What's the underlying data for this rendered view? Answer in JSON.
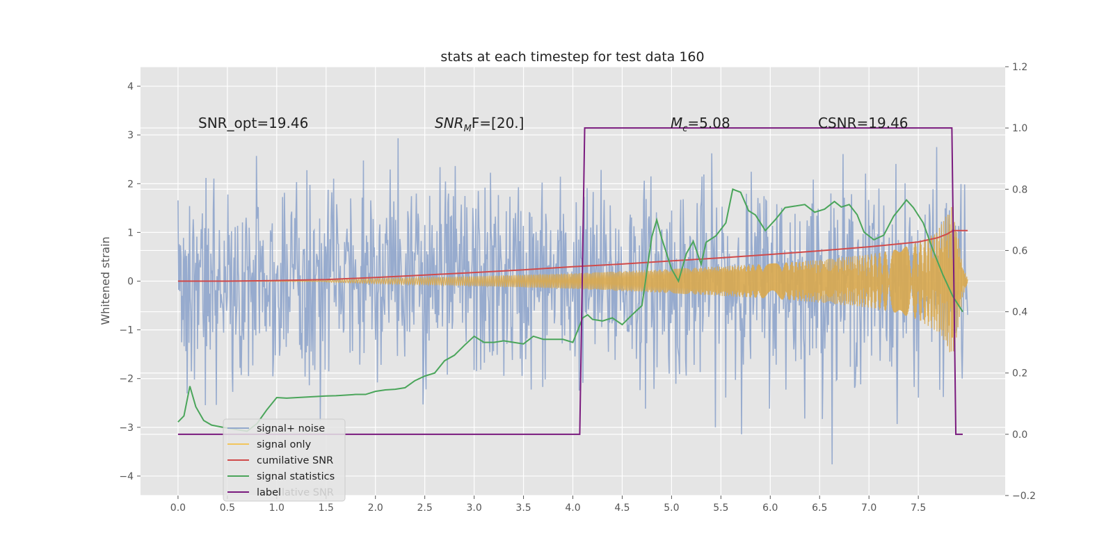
{
  "chart_data": {
    "type": "line",
    "title": "stats at each timestep for test data 160",
    "ylabel": "Whitened strain",
    "xlabel": "",
    "xlim": [
      -0.38,
      8.38
    ],
    "ylim": [
      -4.4,
      4.4
    ],
    "ylim_right": [
      -0.2,
      1.2
    ],
    "grid": true,
    "x_ticks": [
      0.0,
      0.5,
      1.0,
      1.5,
      2.0,
      2.5,
      3.0,
      3.5,
      4.0,
      4.5,
      5.0,
      5.5,
      6.0,
      6.5,
      7.0,
      7.5
    ],
    "x_tick_labels": [
      "0.0",
      "0.5",
      "1.0",
      "1.5",
      "2.0",
      "2.5",
      "3.0",
      "3.5",
      "4.0",
      "4.5",
      "5.0",
      "5.5",
      "6.0",
      "6.5",
      "7.0",
      "7.5"
    ],
    "y_ticks": [
      -4,
      -3,
      -2,
      -1,
      0,
      1,
      2,
      3,
      4
    ],
    "y_tick_labels": [
      "−4",
      "−3",
      "−2",
      "−1",
      "0",
      "1",
      "2",
      "3",
      "4"
    ],
    "y2_ticks": [
      -0.2,
      0.0,
      0.2,
      0.4,
      0.6,
      0.8,
      1.0,
      1.2
    ],
    "y2_tick_labels": [
      "−0.2",
      "0.0",
      "0.2",
      "0.4",
      "0.6",
      "0.8",
      "1.0",
      "1.2"
    ],
    "annotations": [
      {
        "id": "snr-opt",
        "prefix": "SNR_opt=19.46",
        "value": ""
      },
      {
        "id": "snr-mf",
        "prefix": "SNR",
        "sub": "M",
        "suffix": "F=[20.]"
      },
      {
        "id": "mc",
        "prefix": "M",
        "sub": "c",
        "suffix": "=5.08"
      },
      {
        "id": "csnr",
        "prefix": "CSNR=19.46",
        "value": ""
      }
    ],
    "legend": {
      "position": "lower-left",
      "entries": [
        {
          "label": "signal+ noise",
          "color": "#92a8cc"
        },
        {
          "label": "signal only",
          "color": "#f2c55c"
        },
        {
          "label": "cumilative SNR",
          "color": "#d04a4a"
        },
        {
          "label": "signal statistics",
          "color": "#4aa55a"
        },
        {
          "label": "label",
          "color": "#7a1a7e"
        }
      ],
      "ghost_text": "lative SNR"
    },
    "series": [
      {
        "name": "signal+ noise",
        "axis": "left",
        "color": "#92a8cc",
        "t_start": 0.0,
        "t_end": 8.0,
        "noise_sigma": 1.0,
        "samples": 1300
      },
      {
        "name": "signal only",
        "axis": "left",
        "color": "#d9a84e",
        "envelope_t": [
          1.5,
          2.0,
          3.0,
          4.0,
          5.0,
          6.0,
          6.5,
          7.0,
          7.3,
          7.5,
          7.7,
          7.8,
          7.85,
          7.9,
          7.95,
          8.0
        ],
        "envelope_a": [
          0.02,
          0.05,
          0.1,
          0.16,
          0.25,
          0.36,
          0.44,
          0.55,
          0.66,
          0.8,
          1.05,
          1.4,
          1.6,
          1.0,
          0.3,
          0.05
        ]
      },
      {
        "name": "cumilative SNR",
        "axis": "right",
        "color": "#d04a4a",
        "x": [
          0.0,
          0.5,
          1.0,
          1.5,
          2.0,
          2.5,
          3.0,
          3.5,
          4.0,
          4.5,
          5.0,
          5.5,
          6.0,
          6.5,
          7.0,
          7.5,
          7.7,
          7.8,
          7.85,
          8.0
        ],
        "y": [
          0.5,
          0.5,
          0.502,
          0.505,
          0.512,
          0.52,
          0.528,
          0.537,
          0.547,
          0.556,
          0.566,
          0.576,
          0.587,
          0.599,
          0.612,
          0.628,
          0.642,
          0.655,
          0.665,
          0.665
        ]
      },
      {
        "name": "signal statistics",
        "axis": "right",
        "color": "#4aa55a",
        "x": [
          0.0,
          0.06,
          0.12,
          0.18,
          0.26,
          0.34,
          0.42,
          0.5,
          0.6,
          0.7,
          0.8,
          0.9,
          1.0,
          1.1,
          1.5,
          1.6,
          1.7,
          1.8,
          1.9,
          2.0,
          2.1,
          2.2,
          2.3,
          2.4,
          2.5,
          2.6,
          2.7,
          2.8,
          2.9,
          3.0,
          3.1,
          3.2,
          3.3,
          3.4,
          3.5,
          3.6,
          3.7,
          3.8,
          3.9,
          4.0,
          4.1,
          4.15,
          4.2,
          4.3,
          4.4,
          4.5,
          4.6,
          4.7,
          4.8,
          4.85,
          4.9,
          5.0,
          5.07,
          5.15,
          5.22,
          5.3,
          5.35,
          5.45,
          5.55,
          5.62,
          5.7,
          5.78,
          5.85,
          5.95,
          6.05,
          6.15,
          6.25,
          6.35,
          6.45,
          6.55,
          6.65,
          6.72,
          6.8,
          6.88,
          6.95,
          7.05,
          7.15,
          7.25,
          7.32,
          7.38,
          7.45,
          7.55,
          7.65,
          7.75,
          7.85,
          7.95
        ],
        "y": [
          0.04,
          0.06,
          0.157,
          0.09,
          0.045,
          0.03,
          0.025,
          0.02,
          0.015,
          0.01,
          0.035,
          0.08,
          0.12,
          0.118,
          0.125,
          0.126,
          0.128,
          0.13,
          0.13,
          0.14,
          0.145,
          0.147,
          0.152,
          0.175,
          0.19,
          0.2,
          0.24,
          0.258,
          0.29,
          0.32,
          0.3,
          0.3,
          0.305,
          0.3,
          0.295,
          0.32,
          0.31,
          0.31,
          0.31,
          0.3,
          0.38,
          0.39,
          0.375,
          0.37,
          0.38,
          0.358,
          0.39,
          0.42,
          0.645,
          0.7,
          0.64,
          0.54,
          0.5,
          0.59,
          0.63,
          0.555,
          0.627,
          0.648,
          0.69,
          0.8,
          0.79,
          0.73,
          0.716,
          0.665,
          0.7,
          0.74,
          0.745,
          0.75,
          0.725,
          0.735,
          0.76,
          0.742,
          0.75,
          0.717,
          0.66,
          0.635,
          0.65,
          0.712,
          0.74,
          0.765,
          0.74,
          0.69,
          0.6,
          0.52,
          0.45,
          0.4
        ]
      },
      {
        "name": "label",
        "axis": "right",
        "color": "#7a1a7e",
        "x": [
          0.0,
          4.07,
          4.12,
          7.84,
          7.88,
          7.95
        ],
        "y": [
          0.0,
          0.0,
          1.0,
          1.0,
          0.0,
          0.0
        ]
      }
    ]
  }
}
